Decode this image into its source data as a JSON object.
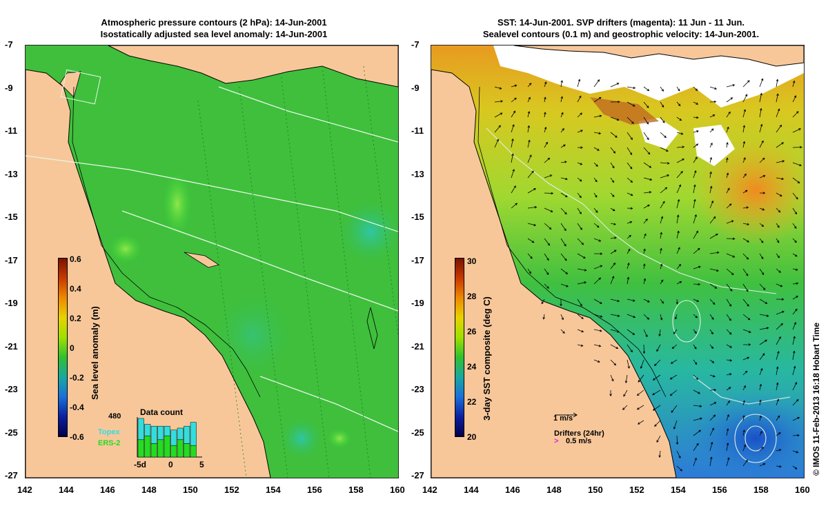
{
  "left_panel": {
    "title_line1": "Atmospheric pressure contours (2 hPa): 14-Jun-2001",
    "title_line2": "Isostatically adjusted sea level anomaly: 14-Jun-2001",
    "colorbar": {
      "title": "Sea level anomaly (m)",
      "ticks": [
        "0.6",
        "0.4",
        "0.2",
        "0",
        "-0.2",
        "-0.4",
        "-0.6"
      ]
    },
    "data_count": {
      "title": "Data count",
      "max_label": "480",
      "x_ticks": [
        "-5d",
        "0",
        "5"
      ],
      "series": [
        {
          "name": "Topex",
          "color": "#33dddd"
        },
        {
          "name": "ERS-2",
          "color": "#22dd22"
        }
      ],
      "bars_topex": [
        0.55,
        0.3,
        0.45,
        0.35,
        0.25,
        0.4,
        0.3,
        0.45,
        0.6
      ],
      "bars_ers": [
        0.45,
        0.55,
        0.35,
        0.45,
        0.55,
        0.3,
        0.45,
        0.35,
        0.3
      ]
    }
  },
  "right_panel": {
    "title_line1": "SST: 14-Jun-2001. SVP drifters (magenta): 11 Jun - 11 Jun.",
    "title_line2": "Sealevel contours (0.1 m) and geostrophic velocity: 14-Jun-2001.",
    "colorbar": {
      "title": "3-day SST composite (deg C)",
      "ticks": [
        "30",
        "28",
        "26",
        "24",
        "22",
        "20"
      ]
    },
    "velocity_scale_label": "1 m/s",
    "drifters_label": "Drifters (24hr)",
    "drifter_scale_label": "0.5 m/s"
  },
  "axes": {
    "x_ticks": [
      "142",
      "144",
      "146",
      "148",
      "150",
      "152",
      "154",
      "156",
      "158",
      "160"
    ],
    "y_ticks": [
      "-7",
      "-9",
      "-11",
      "-13",
      "-15",
      "-17",
      "-19",
      "-21",
      "-23",
      "-25",
      "-27"
    ]
  },
  "credit": "© IMOS 11-Feb-2013 16:18 Hobart Time",
  "colors": {
    "land": "#f7c79a",
    "sea_green": "#3dbf3d",
    "sea_bright": "#2fd42f",
    "sst_warm": "#f0b020",
    "sst_cool": "#2d8fd8",
    "white_void": "#ffffff"
  }
}
